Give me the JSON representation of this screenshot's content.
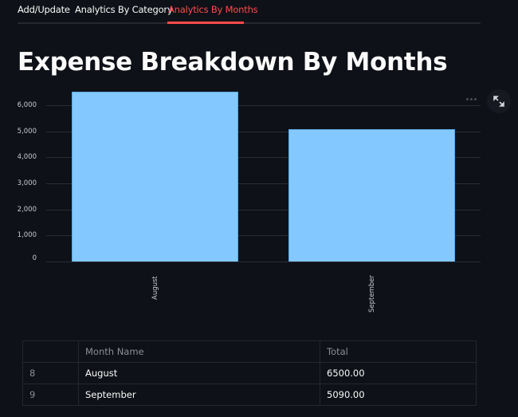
{
  "tabs": [
    {
      "label": "Add/Update",
      "active": false
    },
    {
      "label": "Analytics By Category",
      "active": false
    },
    {
      "label": "Analytics By Months",
      "active": true
    }
  ],
  "title": "Expense Breakdown By Months",
  "toolbar": {
    "more_icon": "more-horizontal-icon",
    "expand_icon": "expand-icon"
  },
  "colors": {
    "accent": "#ff4b4b",
    "bar": "#83c9ff",
    "background": "#0e1117"
  },
  "chart_data": {
    "type": "bar",
    "title": "",
    "categories": [
      "August",
      "September"
    ],
    "values": [
      6500,
      5090
    ],
    "xlabel": "",
    "ylabel": "",
    "ylim": [
      0,
      6500
    ],
    "yticks": [
      "0",
      "1,000",
      "2,000",
      "3,000",
      "4,000",
      "5,000",
      "6,000"
    ],
    "grid": true,
    "legend": "none"
  },
  "table": {
    "columns": [
      "",
      "Month Name",
      "Total"
    ],
    "rows": [
      {
        "index": "8",
        "month": "August",
        "total": "6500.00"
      },
      {
        "index": "9",
        "month": "September",
        "total": "5090.00"
      }
    ]
  }
}
